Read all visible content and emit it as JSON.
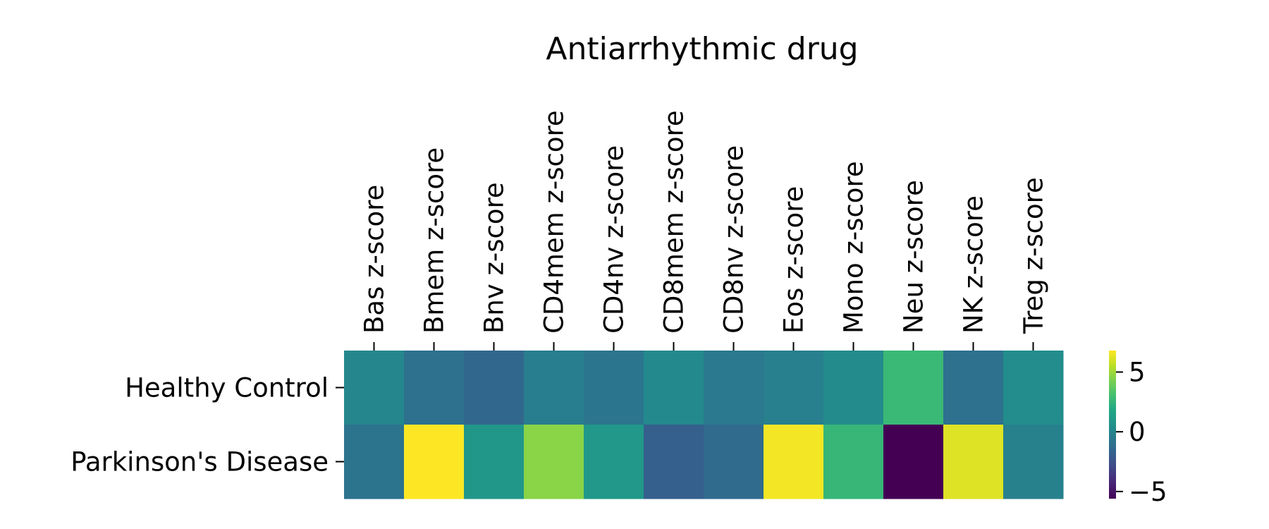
{
  "chart_data": {
    "type": "heatmap",
    "title": "Antiarrhythmic drug",
    "columns": [
      "Bas z-score",
      "Bmem z-score",
      "Bnv z-score",
      "CD4mem z-score",
      "CD4nv z-score",
      "CD8mem z-score",
      "CD8nv z-score",
      "Eos z-score",
      "Mono z-score",
      "Neu z-score",
      "NK z-score",
      "Treg z-score"
    ],
    "rows": [
      "Healthy Control",
      "Parkinson's Disease"
    ],
    "values": [
      [
        0.1,
        -1.0,
        -1.5,
        -0.4,
        -0.8,
        0.2,
        -0.6,
        -0.3,
        0.3,
        2.7,
        -1.0,
        0.4
      ],
      [
        -0.9,
        6.8,
        0.9,
        4.6,
        1.0,
        -1.9,
        -1.3,
        6.6,
        2.6,
        -5.6,
        6.2,
        -0.2
      ]
    ],
    "colormap": "viridis",
    "vmin": -5.6,
    "vmax": 6.8,
    "colorbar_ticks": [
      5,
      0,
      -5
    ],
    "colorbar_tick_labels": [
      "5",
      "0",
      "−5"
    ],
    "xlabel": "",
    "ylabel": "",
    "x_tick_position": "top"
  }
}
